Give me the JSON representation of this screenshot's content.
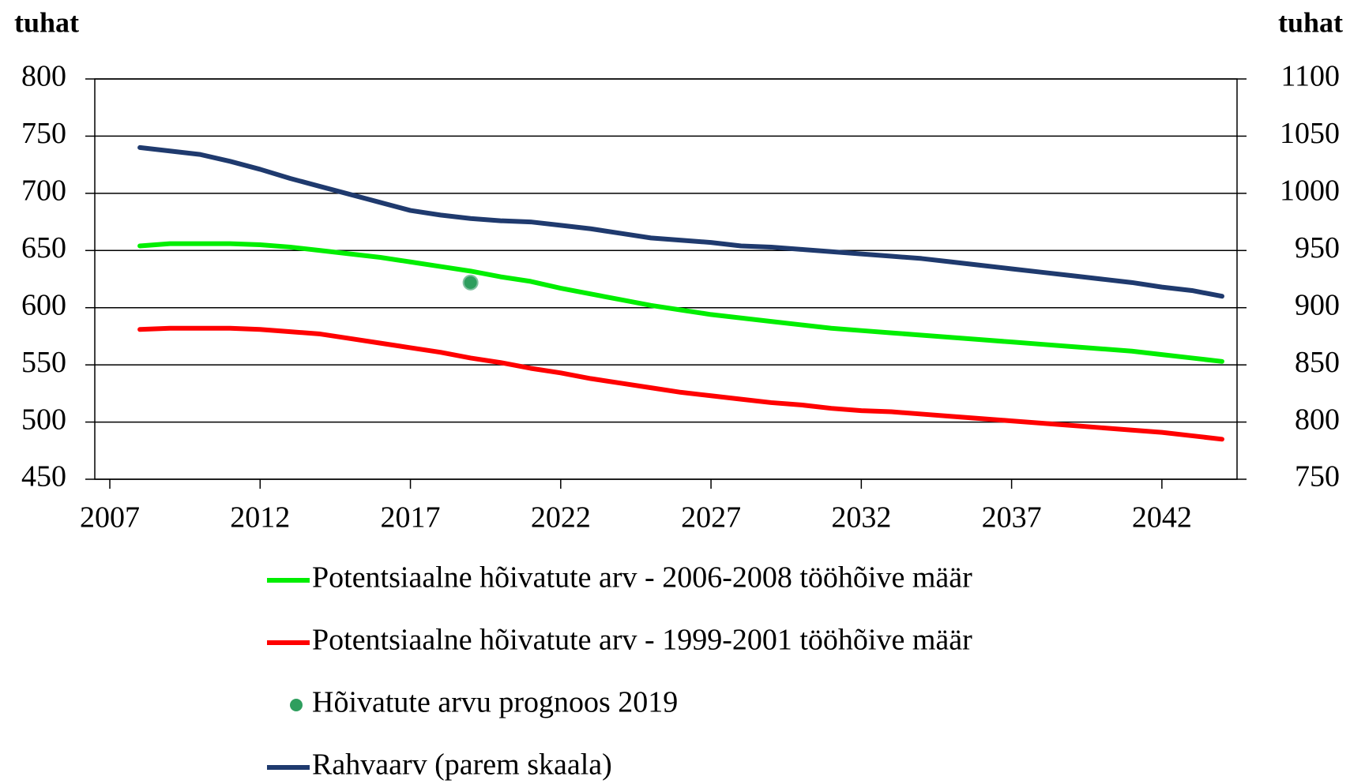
{
  "chart_data": {
    "type": "line",
    "y_label": "tuhat",
    "y2_label": "tuhat",
    "x": [
      2008,
      2009,
      2010,
      2011,
      2012,
      2013,
      2014,
      2015,
      2016,
      2017,
      2018,
      2019,
      2020,
      2021,
      2022,
      2023,
      2024,
      2025,
      2026,
      2027,
      2028,
      2029,
      2030,
      2031,
      2032,
      2033,
      2034,
      2035,
      2036,
      2037,
      2038,
      2039,
      2040,
      2041,
      2042,
      2043,
      2044
    ],
    "xlim": [
      2006.5,
      2044.5
    ],
    "xticks": [
      2007,
      2012,
      2017,
      2022,
      2027,
      2032,
      2037,
      2042
    ],
    "ylim": [
      450,
      800
    ],
    "yticks": [
      450,
      500,
      550,
      600,
      650,
      700,
      750,
      800
    ],
    "y2lim": [
      750,
      1100
    ],
    "y2ticks": [
      750,
      800,
      850,
      900,
      950,
      1000,
      1050,
      1100
    ],
    "grid": true,
    "legend": "bottom",
    "series": [
      {
        "name": "Potentsiaalne hõivatute arv - 2006-2008 tööhõive määr",
        "color": "#00ee00",
        "values": [
          654,
          656,
          656,
          656,
          655,
          653,
          650,
          647,
          644,
          640,
          636,
          632,
          627,
          623,
          617,
          612,
          607,
          602,
          598,
          594,
          591,
          588,
          585,
          582,
          580,
          578,
          576,
          574,
          572,
          570,
          568,
          566,
          564,
          562,
          559,
          556,
          553
        ]
      },
      {
        "name": "Potentsiaalne hõivatute arv - 1999-2001 tööhõive määr",
        "color": "#ff0000",
        "values": [
          581,
          582,
          582,
          582,
          581,
          579,
          577,
          573,
          569,
          565,
          561,
          556,
          552,
          547,
          543,
          538,
          534,
          530,
          526,
          523,
          520,
          517,
          515,
          512,
          510,
          509,
          507,
          505,
          503,
          501,
          499,
          497,
          495,
          493,
          491,
          488,
          485
        ]
      },
      {
        "name": "Hõivatute arvu prognoos 2019",
        "color": "#2e9e5e",
        "type": "scatter",
        "x": [
          2019
        ],
        "values": [
          622
        ]
      },
      {
        "name": "Rahvaarv (parem skaala)",
        "color": "#1f3a6e",
        "axis": "y2",
        "values": [
          1040,
          1037,
          1034,
          1028,
          1021,
          1013,
          1006,
          999,
          992,
          985,
          981,
          978,
          976,
          975,
          972,
          969,
          965,
          961,
          959,
          957,
          954,
          953,
          951,
          949,
          947,
          945,
          943,
          940,
          937,
          934,
          931,
          928,
          925,
          922,
          918,
          915,
          910
        ]
      }
    ]
  }
}
